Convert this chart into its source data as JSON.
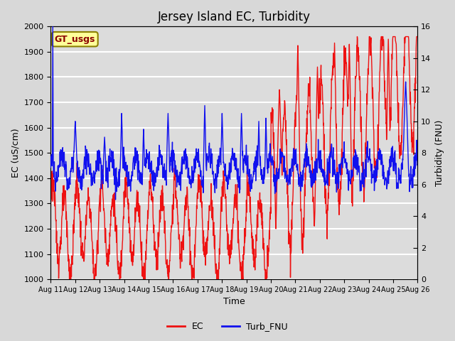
{
  "title": "Jersey Island EC, Turbidity",
  "xlabel": "Time",
  "ylabel_left": "EC (uS/cm)",
  "ylabel_right": "Turbidity (FNU)",
  "ec_ylim": [
    1000,
    2000
  ],
  "turb_ylim": [
    0,
    16
  ],
  "ec_yticks": [
    1000,
    1100,
    1200,
    1300,
    1400,
    1500,
    1600,
    1700,
    1800,
    1900,
    2000
  ],
  "turb_yticks": [
    0,
    2,
    4,
    6,
    8,
    10,
    12,
    14,
    16
  ],
  "xtick_labels": [
    "Aug 11",
    "Aug 12",
    "Aug 13",
    "Aug 14",
    "Aug 15",
    "Aug 16",
    "Aug 17",
    "Aug 18",
    "Aug 19",
    "Aug 20",
    "Aug 21",
    "Aug 22",
    "Aug 23",
    "Aug 24",
    "Aug 25",
    "Aug 26"
  ],
  "ec_color": "#EE1111",
  "turb_color": "#1111EE",
  "bg_color": "#D8D8D8",
  "plot_bg_color": "#DCDCDC",
  "legend_ec": "EC",
  "legend_turb": "Turb_FNU",
  "annotation_text": "GT_usgs",
  "grid_color": "#FFFFFF",
  "title_fontsize": 12,
  "linewidth": 1.0
}
